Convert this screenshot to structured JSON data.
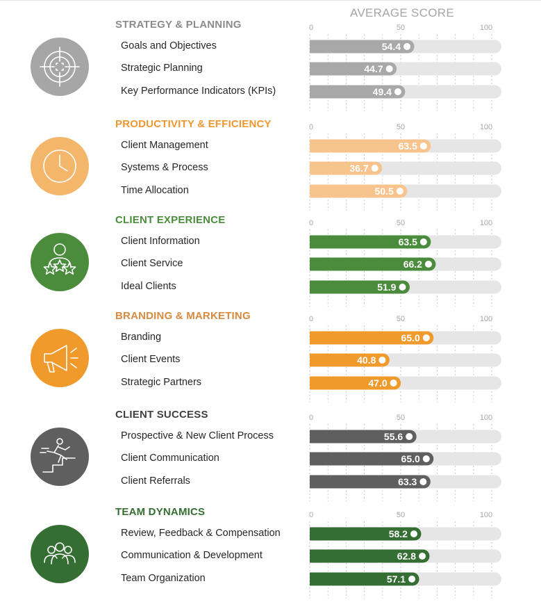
{
  "title": "AVERAGE SCORE",
  "chart_data": {
    "type": "bar",
    "orientation": "horizontal",
    "title": "AVERAGE SCORE",
    "xlim": [
      0,
      100
    ],
    "ticks": [
      "0",
      "50",
      "100"
    ],
    "sections": [
      {
        "title": "STRATEGY & PLANNING",
        "title_color": "#8c8c8c",
        "bar_color": "#a8a8a8",
        "text_color": "#ffffff",
        "icon": "target-icon",
        "categories": [
          "Goals and Objectives",
          "Strategic Planning",
          "Key Performance Indicators (KPIs)"
        ],
        "values": [
          54.4,
          44.7,
          49.4
        ],
        "value_labels": [
          "54.4",
          "44.7",
          "49.4"
        ]
      },
      {
        "title": "PRODUCTIVITY & EFFICIENCY",
        "title_color": "#f0962e",
        "bar_color": "#f8c48e",
        "text_color": "#ffffff",
        "icon": "clock-icon",
        "categories": [
          "Client Management",
          "Systems & Process",
          "Time Allocation"
        ],
        "values": [
          63.5,
          36.7,
          50.5
        ],
        "value_labels": [
          "63.5",
          "36.7",
          "50.5"
        ]
      },
      {
        "title": "CLIENT EXPERIENCE",
        "title_color": "#4a8c3c",
        "bar_color": "#4a8c3c",
        "text_color": "#ffffff",
        "icon": "person-stars-icon",
        "categories": [
          "Client Information",
          "Client Service",
          "Ideal Clients"
        ],
        "values": [
          63.5,
          66.2,
          51.9
        ],
        "value_labels": [
          "63.5",
          "66.2",
          "51.9"
        ]
      },
      {
        "title": "BRANDING & MARKETING",
        "title_color": "#d78a3f",
        "bar_color": "#f09a2c",
        "text_color": "#ffffff",
        "icon": "megaphone-icon",
        "categories": [
          "Branding",
          "Client Events",
          "Strategic Partners"
        ],
        "values": [
          65.0,
          40.8,
          47.0
        ],
        "value_labels": [
          "65.0",
          "40.8",
          "47.0"
        ]
      },
      {
        "title": "CLIENT SUCCESS",
        "title_color": "#404040",
        "bar_color": "#5f5f5f",
        "text_color": "#ffffff",
        "icon": "runner-stairs-icon",
        "categories": [
          "Prospective & New Client Process",
          "Client Communication",
          "Client Referrals"
        ],
        "values": [
          55.6,
          65.0,
          63.3
        ],
        "value_labels": [
          "55.6",
          "65.0",
          "63.3"
        ]
      },
      {
        "title": "TEAM DYNAMICS",
        "title_color": "#356e32",
        "bar_color": "#356e32",
        "text_color": "#ffffff",
        "icon": "team-icon",
        "categories": [
          "Review, Feedback & Compensation",
          "Communication & Development",
          "Team Organization"
        ],
        "values": [
          58.2,
          62.8,
          57.1
        ],
        "value_labels": [
          "58.2",
          "62.8",
          "57.1"
        ]
      }
    ],
    "track_color": "#e6e6e6",
    "grid": true
  }
}
